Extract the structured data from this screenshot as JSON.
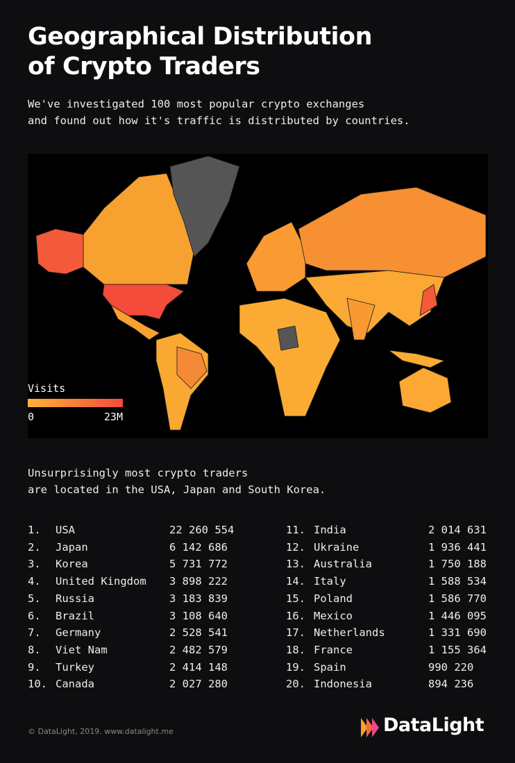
{
  "header": {
    "title": [
      "Geographical Distribution",
      "of Crypto Traders"
    ],
    "subtitle": [
      "We've investigated 100 most popular crypto exchanges",
      "and found out how it's traffic is distributed by countries."
    ]
  },
  "map": {
    "legend": {
      "title": "Visits",
      "min_label": "0",
      "max_label": "23M"
    }
  },
  "note": [
    "Unsurprisingly most crypto traders",
    "are located in the USA, Japan and South Korea."
  ],
  "table": {
    "rows": [
      {
        "rank": "1.",
        "country": "USA",
        "visits": "22 260 554"
      },
      {
        "rank": "2.",
        "country": "Japan",
        "visits": "6 142 686"
      },
      {
        "rank": "3.",
        "country": "Korea",
        "visits": "5 731 772"
      },
      {
        "rank": "4.",
        "country": "United Kingdom",
        "visits": "3 898 222"
      },
      {
        "rank": "5.",
        "country": "Russia",
        "visits": "3 183 839"
      },
      {
        "rank": "6.",
        "country": "Brazil",
        "visits": "3 108 640"
      },
      {
        "rank": "7.",
        "country": "Germany",
        "visits": "2 528 541"
      },
      {
        "rank": "8.",
        "country": "Viet Nam",
        "visits": "2 482 579"
      },
      {
        "rank": "9.",
        "country": "Turkey",
        "visits": "2 414 148"
      },
      {
        "rank": "10.",
        "country": "Canada",
        "visits": "2 027 280"
      },
      {
        "rank": "11.",
        "country": "India",
        "visits": "2 014 631"
      },
      {
        "rank": "12.",
        "country": "Ukraine",
        "visits": "1 936 441"
      },
      {
        "rank": "13.",
        "country": "Australia",
        "visits": "1 750 188"
      },
      {
        "rank": "14.",
        "country": "Italy",
        "visits": "1 588 534"
      },
      {
        "rank": "15.",
        "country": "Poland",
        "visits": "1 586 770"
      },
      {
        "rank": "16.",
        "country": "Mexico",
        "visits": "1 446 095"
      },
      {
        "rank": "17.",
        "country": "Netherlands",
        "visits": "1 331 690"
      },
      {
        "rank": "18.",
        "country": "France",
        "visits": "1 155 364"
      },
      {
        "rank": "19.",
        "country": "Spain",
        "visits": "990 220"
      },
      {
        "rank": "20.",
        "country": "Indonesia",
        "visits": "894 236"
      }
    ]
  },
  "footer": {
    "copyright": "© DataLight, 2019. www.datalight.me",
    "logo": "DataLight"
  }
}
